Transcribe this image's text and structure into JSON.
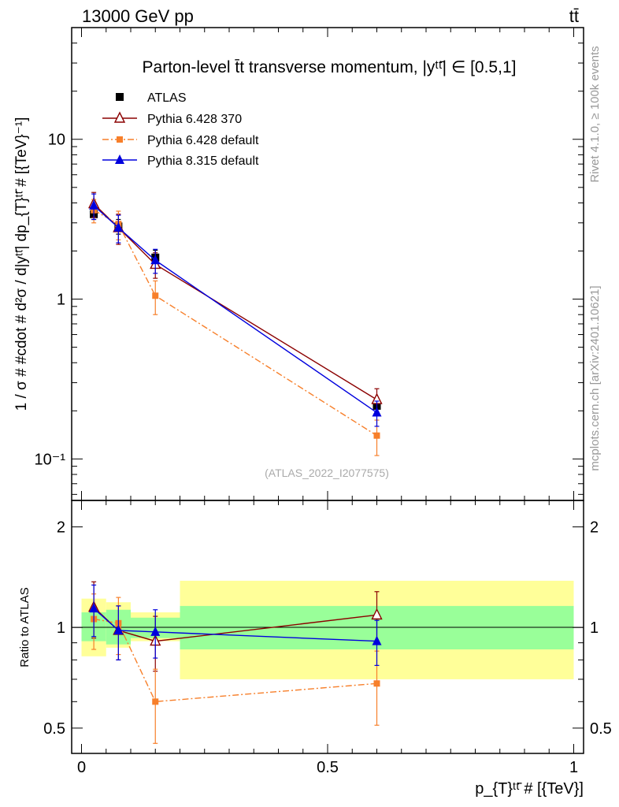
{
  "header": {
    "energy_label": "13000 GeV pp",
    "process_label": "tt̄"
  },
  "side_labels": {
    "rivet": "Rivet 4.1.0, ≥ 100k events",
    "mcplots": "mcplots.cern.ch [arXiv:2401.10621]"
  },
  "watermark": "(ATLAS_2022_I2077575)",
  "chart_data": [
    {
      "type": "line",
      "panel": "main",
      "title": "Parton-level t̄t transverse momentum, |yᵗᵗ̄| ∈ [0.5,1]",
      "ylabel": "1 / σ # #cdot # d²σ / d|yᵗᵗ̄| dp_{T}ᵗᵗ̄ # [{TeV}⁻¹]",
      "yscale": "log",
      "ylim": [
        0.055,
        50
      ],
      "xlim": [
        -0.02,
        1.02
      ],
      "y_ticks": [
        {
          "value": 0.1,
          "label": "10⁻¹"
        },
        {
          "value": 1,
          "label": "1"
        },
        {
          "value": 10,
          "label": "10"
        }
      ],
      "legend_position": "top-left",
      "series": [
        {
          "name": "ATLAS",
          "color": "#000000",
          "marker": "square",
          "x": [
            0.025,
            0.075,
            0.15,
            0.6
          ],
          "x_err": [
            0.025,
            0.025,
            0.05,
            0.4
          ],
          "y": [
            3.4,
            2.85,
            1.82,
            0.215
          ],
          "y_err": [
            0.25,
            0.3,
            0.2,
            0.025
          ]
        },
        {
          "name": "Pythia 6.428 370",
          "color": "#8b0000",
          "marker": "open-triangle",
          "linestyle": "solid",
          "x": [
            0.025,
            0.075,
            0.15,
            0.6
          ],
          "y": [
            3.95,
            2.8,
            1.65,
            0.235
          ],
          "y_err": [
            0.7,
            0.6,
            0.3,
            0.04
          ]
        },
        {
          "name": "Pythia 6.428 default",
          "color": "#f77f2a",
          "marker": "square-small",
          "linestyle": "dashdot",
          "x": [
            0.025,
            0.075,
            0.15,
            0.6
          ],
          "y": [
            3.6,
            2.95,
            1.05,
            0.14
          ],
          "y_err": [
            0.6,
            0.6,
            0.25,
            0.035
          ]
        },
        {
          "name": "Pythia 8.315 default",
          "color": "#0000dd",
          "marker": "triangle",
          "linestyle": "solid",
          "x": [
            0.025,
            0.075,
            0.15,
            0.6
          ],
          "y": [
            3.85,
            2.8,
            1.75,
            0.195
          ],
          "y_err": [
            0.7,
            0.55,
            0.3,
            0.035
          ]
        }
      ]
    },
    {
      "type": "line",
      "panel": "ratio",
      "ylabel": "Ratio to ATLAS",
      "xlabel": "p_{T}ᵗᵗ̄ # [{TeV}]",
      "yscale": "log",
      "ylim": [
        0.42,
        2.4
      ],
      "xlim": [
        -0.02,
        1.02
      ],
      "x_ticks": [
        {
          "value": 0,
          "label": "0"
        },
        {
          "value": 0.5,
          "label": "0.5"
        },
        {
          "value": 1,
          "label": "1"
        }
      ],
      "y_ticks": [
        {
          "value": 0.5,
          "label": "0.5"
        },
        {
          "value": 1,
          "label": "1"
        },
        {
          "value": 2,
          "label": "2"
        }
      ],
      "bands": [
        {
          "x_low": 0.0,
          "x_high": 0.05,
          "inner": [
            0.91,
            1.11
          ],
          "outer": [
            0.82,
            1.22
          ]
        },
        {
          "x_low": 0.05,
          "x_high": 0.1,
          "inner": [
            0.89,
            1.13
          ],
          "outer": [
            0.87,
            1.19
          ]
        },
        {
          "x_low": 0.1,
          "x_high": 0.2,
          "inner": [
            0.93,
            1.07
          ],
          "outer": [
            0.91,
            1.11
          ]
        },
        {
          "x_low": 0.2,
          "x_high": 1.0,
          "inner": [
            0.86,
            1.16
          ],
          "outer": [
            0.7,
            1.38
          ]
        }
      ],
      "band_colors": {
        "inner": "#99ff99",
        "outer": "#ffff99"
      },
      "series": [
        {
          "name": "Pythia 6.428 370",
          "color": "#8b0000",
          "marker": "open-triangle",
          "linestyle": "solid",
          "x": [
            0.025,
            0.075,
            0.15,
            0.6
          ],
          "y": [
            1.15,
            0.98,
            0.91,
            1.09
          ],
          "y_err": [
            0.22,
            0.18,
            0.17,
            0.19
          ]
        },
        {
          "name": "Pythia 6.428 default",
          "color": "#f77f2a",
          "marker": "square-small",
          "linestyle": "dashdot",
          "x": [
            0.025,
            0.075,
            0.15,
            0.6
          ],
          "y": [
            1.06,
            1.03,
            0.6,
            0.68
          ],
          "y_err": [
            0.2,
            0.2,
            0.15,
            0.17
          ]
        },
        {
          "name": "Pythia 8.315 default",
          "color": "#0000dd",
          "marker": "triangle",
          "linestyle": "solid",
          "x": [
            0.025,
            0.075,
            0.15,
            0.6
          ],
          "y": [
            1.14,
            0.98,
            0.97,
            0.91
          ],
          "y_err": [
            0.2,
            0.18,
            0.16,
            0.14
          ]
        }
      ]
    }
  ]
}
